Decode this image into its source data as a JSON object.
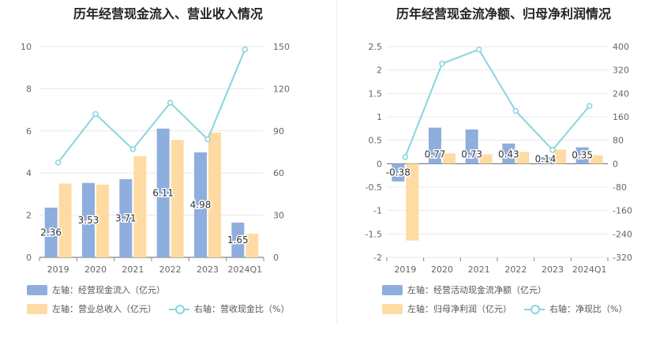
{
  "colors": {
    "blue_bar": "#8eaedd",
    "orange_bar": "#fddba2",
    "line": "#86d6de",
    "axis_text": "#666666",
    "grid": "#e8e8e8"
  },
  "chart_data": [
    {
      "type": "bar",
      "title": "历年经营现金流入、营业收入情况",
      "categories": [
        "2019",
        "2020",
        "2021",
        "2022",
        "2023",
        "2024Q1"
      ],
      "left_axis": {
        "ylim": [
          0,
          10
        ],
        "ticks": [
          "0",
          "2",
          "4",
          "6",
          "8",
          "10"
        ]
      },
      "right_axis": {
        "ylim": [
          0,
          150
        ],
        "ticks": [
          "0",
          "30",
          "60",
          "90",
          "120",
          "150"
        ]
      },
      "grid": true,
      "legend_position": "bottom-left",
      "series": [
        {
          "name": "左轴：经营现金流入（亿元）",
          "axis": "left",
          "type": "bar",
          "color": "#8eaedd",
          "values": [
            2.36,
            3.53,
            3.71,
            6.11,
            4.98,
            1.65
          ],
          "labels": [
            "2.36",
            "3.53",
            "3.71",
            "6.11",
            "4.98",
            "1.65"
          ]
        },
        {
          "name": "左轴：营业总收入（亿元）",
          "axis": "left",
          "type": "bar",
          "color": "#fddba2",
          "values": [
            3.5,
            3.45,
            4.8,
            5.57,
            5.92,
            1.12
          ]
        },
        {
          "name": "右轴：营收现金比（%）",
          "axis": "right",
          "type": "line",
          "color": "#86d6de",
          "values": [
            67.5,
            102,
            77,
            110,
            84,
            148
          ]
        }
      ]
    },
    {
      "type": "bar",
      "title": "历年经营现金流净额、归母净利润情况",
      "categories": [
        "2019",
        "2020",
        "2021",
        "2022",
        "2023",
        "2024Q1"
      ],
      "left_axis": {
        "ylim": [
          -2,
          2.5
        ],
        "ticks": [
          "-2",
          "-1.5",
          "-1",
          "-0.5",
          "0",
          "0.5",
          "1",
          "1.5",
          "2",
          "2.5"
        ]
      },
      "right_axis": {
        "ylim": [
          -320,
          400
        ],
        "ticks": [
          "-320",
          "-240",
          "-160",
          "-80",
          "0",
          "80",
          "160",
          "240",
          "320",
          "400"
        ]
      },
      "grid": true,
      "legend_position": "bottom-left",
      "series": [
        {
          "name": "左轴：经营活动现金流净额（亿元）",
          "axis": "left",
          "type": "bar",
          "color": "#8eaedd",
          "values": [
            -0.38,
            0.77,
            0.73,
            0.43,
            0.14,
            0.35
          ],
          "labels": [
            "-0.38",
            "0.77",
            "0.73",
            "0.43",
            "0.14",
            "0.35"
          ]
        },
        {
          "name": "左轴：归母净利润（亿元）",
          "axis": "left",
          "type": "bar",
          "color": "#fddba2",
          "values": [
            -1.64,
            0.22,
            0.2,
            0.25,
            0.3,
            0.18
          ]
        },
        {
          "name": "右轴：净现比（%）",
          "axis": "right",
          "type": "line",
          "color": "#86d6de",
          "values": [
            23,
            342,
            390,
            180,
            47,
            197
          ]
        }
      ]
    }
  ]
}
